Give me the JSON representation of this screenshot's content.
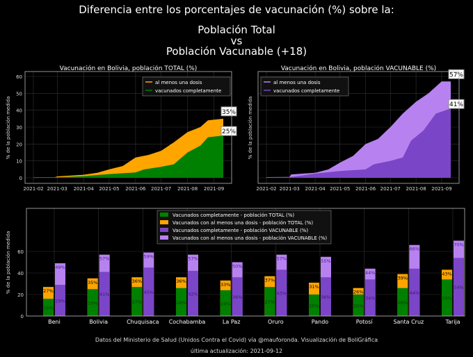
{
  "title": {
    "line1": "Diferencia entre los porcentajes de vacunación (%) sobre la:",
    "line2": "Población Total",
    "line3": "vs",
    "line4": "Población Vacunable (+18)"
  },
  "footer": {
    "source": "Datos del Ministerio de Salud (Unidos Contra el Covid) vía @mauforonda. Visualización de BoliGráfica",
    "updated": "última actualización: 2021-09-12"
  },
  "colors": {
    "green": "#008000",
    "orange": "#ffa500",
    "purple": "#7b45c7",
    "lightpurple": "#b782f0"
  },
  "chart_data": [
    {
      "type": "area",
      "title": "Vacunación en Bolivia, población TOTAL (%)",
      "ylabel": "% de la población medida",
      "ylim": [
        0,
        60
      ],
      "yticks": [
        0,
        10,
        20,
        30,
        40,
        50,
        60
      ],
      "xticks": [
        "2021-02",
        "2021-03",
        "2021-04",
        "2021-05",
        "2021-06",
        "2021-07",
        "2021-08",
        "2021-09"
      ],
      "x_unit": "days since 2021-02-01",
      "legend": "top-right",
      "series": [
        {
          "name": "al menos una dosis",
          "color": "#ffa500",
          "end_label": "35%",
          "points": [
            [
              0,
              0.3
            ],
            [
              25,
              0.3
            ],
            [
              28,
              0.8
            ],
            [
              59,
              1.8
            ],
            [
              75,
              3
            ],
            [
              89,
              5
            ],
            [
              105,
              7
            ],
            [
              120,
              12
            ],
            [
              135,
              13.5
            ],
            [
              150,
              16
            ],
            [
              165,
              21
            ],
            [
              181,
              27
            ],
            [
              196,
              30
            ],
            [
              205,
              34
            ],
            [
              223,
              35
            ]
          ]
        },
        {
          "name": "vacunados completamente",
          "color": "#008000",
          "end_label": "25%",
          "points": [
            [
              0,
              0.2
            ],
            [
              28,
              0.3
            ],
            [
              59,
              1
            ],
            [
              89,
              2.2
            ],
            [
              120,
              3.2
            ],
            [
              130,
              5
            ],
            [
              150,
              6.5
            ],
            [
              165,
              8
            ],
            [
              181,
              15
            ],
            [
              196,
              19
            ],
            [
              205,
              24
            ],
            [
              223,
              25
            ]
          ]
        }
      ]
    },
    {
      "type": "area",
      "title": "Vacunación en Bolivia, población VACUNABLE (%)",
      "ylabel": "% de la población medida",
      "ylim": [
        0,
        60
      ],
      "xticks": [
        "2021-02",
        "2021-03",
        "2021-04",
        "2021-05",
        "2021-06",
        "2021-07",
        "2021-08",
        "2021-09"
      ],
      "x_unit": "days since 2021-02-01",
      "legend": "top-left",
      "series": [
        {
          "name": "al menos una dosis",
          "color": "#b782f0",
          "end_label": "57%",
          "points": [
            [
              0,
              0.4
            ],
            [
              28,
              0.5
            ],
            [
              30,
              2
            ],
            [
              59,
              3
            ],
            [
              75,
              5
            ],
            [
              89,
              9
            ],
            [
              105,
              13
            ],
            [
              120,
              20
            ],
            [
              135,
              23
            ],
            [
              150,
              30
            ],
            [
              165,
              38
            ],
            [
              181,
              45
            ],
            [
              196,
              50
            ],
            [
              212,
              57
            ],
            [
              223,
              57
            ]
          ]
        },
        {
          "name": "vacunados completamente",
          "color": "#7b45c7",
          "end_label": "41%",
          "points": [
            [
              0,
              0.3
            ],
            [
              28,
              0.4
            ],
            [
              45,
              1.5
            ],
            [
              59,
              2.5
            ],
            [
              89,
              4
            ],
            [
              120,
              5
            ],
            [
              130,
              8
            ],
            [
              150,
              10
            ],
            [
              165,
              12
            ],
            [
              175,
              22
            ],
            [
              190,
              28
            ],
            [
              205,
              38
            ],
            [
              223,
              41
            ]
          ]
        }
      ]
    },
    {
      "type": "bar",
      "ylabel": "% de la población medida",
      "ylim": [
        0,
        80
      ],
      "yticks": [
        0,
        20,
        40,
        60
      ],
      "legend": "top-right",
      "categories": [
        "Beni",
        "Bolivia",
        "Chuquisaca",
        "Cochabamba",
        "La Paz",
        "Oruro",
        "Pando",
        "Potosí",
        "Santa Cruz",
        "Tarija"
      ],
      "series": [
        {
          "name": "Vacunados completamente - población TOTAL (%)",
          "color": "#008000",
          "values": [
            16,
            25,
            27,
            26,
            24,
            27,
            20,
            20,
            26,
            34
          ]
        },
        {
          "name": "Vacunados con al menos una dosis - población TOTAL (%)",
          "color": "#ffa500",
          "values": [
            27,
            35,
            36,
            36,
            33,
            37,
            31,
            26,
            39,
            43
          ]
        },
        {
          "name": "Vacunados completamente - población VACUNABLE (%)",
          "color": "#7b45c7",
          "values": [
            29,
            41,
            45,
            42,
            36,
            43,
            36,
            34,
            44,
            54
          ]
        },
        {
          "name": "Vacunados con al menos una dosis - población VACUNABLE (%)",
          "color": "#b782f0",
          "values": [
            49,
            57,
            59,
            57,
            50,
            57,
            55,
            44,
            66,
            70
          ]
        }
      ]
    }
  ]
}
